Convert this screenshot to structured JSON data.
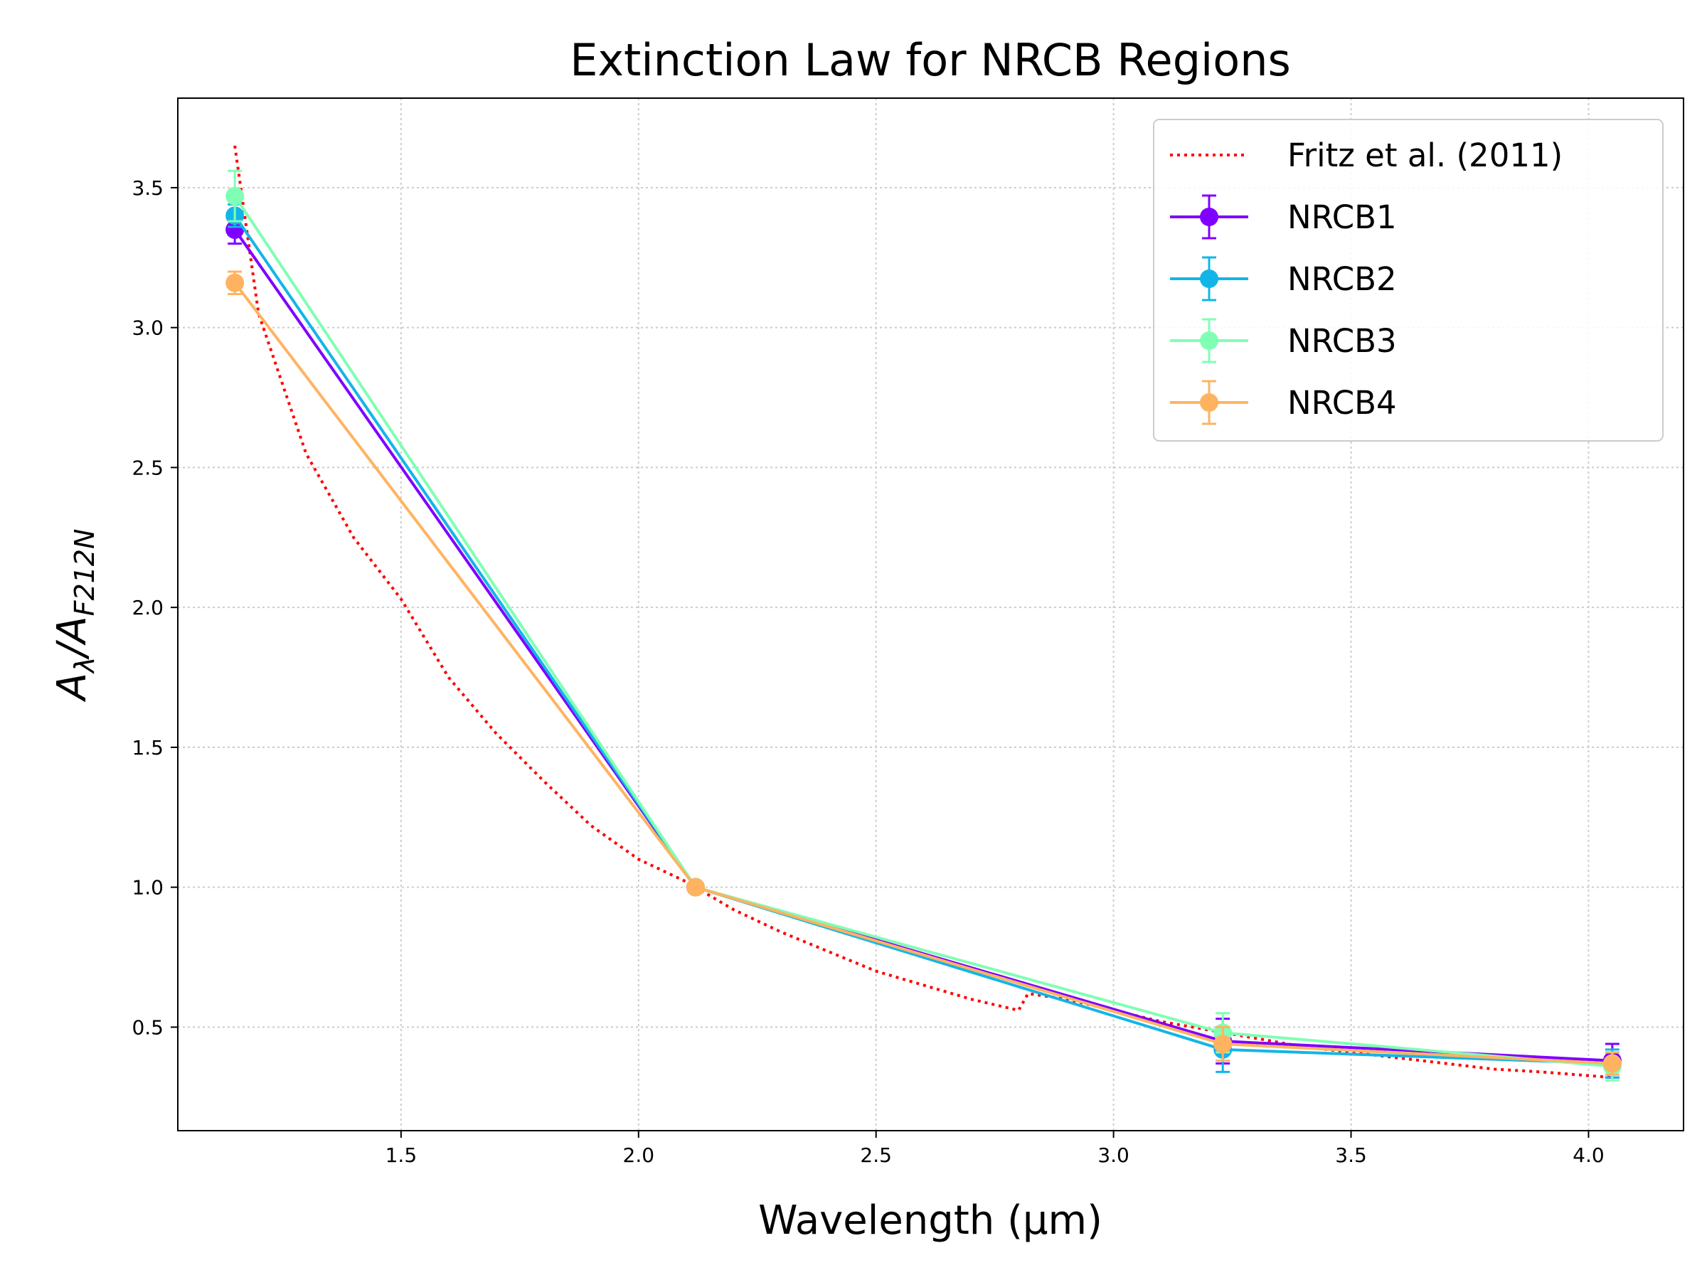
{
  "chart_data": {
    "type": "line",
    "title": "Extinction Law for NRCB Regions",
    "xlabel": "Wavelength (μm)",
    "ylabel": {
      "base": "A",
      "sub1": "λ",
      "slash": "/",
      "base2": "A",
      "sub2": "F212N"
    },
    "xlim": [
      1.03,
      4.2
    ],
    "ylim": [
      0.13,
      3.82
    ],
    "xticks": [
      1.5,
      2.0,
      2.5,
      3.0,
      3.5,
      4.0
    ],
    "xtick_labels": [
      "1.5",
      "2.0",
      "2.5",
      "3.0",
      "3.5",
      "4.0"
    ],
    "yticks": [
      0.5,
      1.0,
      1.5,
      2.0,
      2.5,
      3.0,
      3.5
    ],
    "ytick_labels": [
      "0.5",
      "1.0",
      "1.5",
      "2.0",
      "2.5",
      "3.0",
      "3.5"
    ],
    "grid": true,
    "legend_position": "top-right",
    "reference_curve": {
      "name": "Fritz et al. (2011)",
      "color": "#ff0000",
      "style": "dotted",
      "x": [
        1.15,
        1.2,
        1.3,
        1.4,
        1.5,
        1.6,
        1.7,
        1.8,
        1.9,
        2.0,
        2.1,
        2.2,
        2.3,
        2.4,
        2.5,
        2.6,
        2.7,
        2.8,
        2.82,
        2.9,
        3.0,
        3.1,
        3.2,
        3.3,
        3.4,
        3.5,
        3.6,
        3.7,
        3.8,
        3.9,
        4.05
      ],
      "y": [
        3.65,
        3.05,
        2.55,
        2.25,
        2.03,
        1.75,
        1.55,
        1.38,
        1.22,
        1.1,
        1.02,
        0.92,
        0.84,
        0.77,
        0.7,
        0.65,
        0.6,
        0.56,
        0.62,
        0.6,
        0.56,
        0.52,
        0.49,
        0.46,
        0.43,
        0.41,
        0.39,
        0.37,
        0.35,
        0.34,
        0.32
      ]
    },
    "series": [
      {
        "name": "NRCB1",
        "color": "#7f00ff",
        "x": [
          1.15,
          2.12,
          3.23,
          4.05
        ],
        "y": [
          3.35,
          1.0,
          0.45,
          0.38
        ],
        "err": [
          0.05,
          0.0,
          0.08,
          0.06
        ]
      },
      {
        "name": "NRCB2",
        "color": "#13b5e8",
        "x": [
          1.15,
          2.12,
          3.23,
          4.05
        ],
        "y": [
          3.4,
          1.0,
          0.42,
          0.37
        ],
        "err": [
          0.04,
          0.0,
          0.08,
          0.05
        ]
      },
      {
        "name": "NRCB3",
        "color": "#80ffb4",
        "x": [
          1.15,
          2.12,
          3.23,
          4.05
        ],
        "y": [
          3.47,
          1.0,
          0.48,
          0.36
        ],
        "err": [
          0.09,
          0.0,
          0.07,
          0.05
        ]
      },
      {
        "name": "NRCB4",
        "color": "#ffb360",
        "x": [
          1.15,
          2.12,
          3.23,
          4.05
        ],
        "y": [
          3.16,
          1.0,
          0.44,
          0.37
        ],
        "err": [
          0.04,
          0.0,
          0.06,
          0.04
        ]
      }
    ]
  }
}
